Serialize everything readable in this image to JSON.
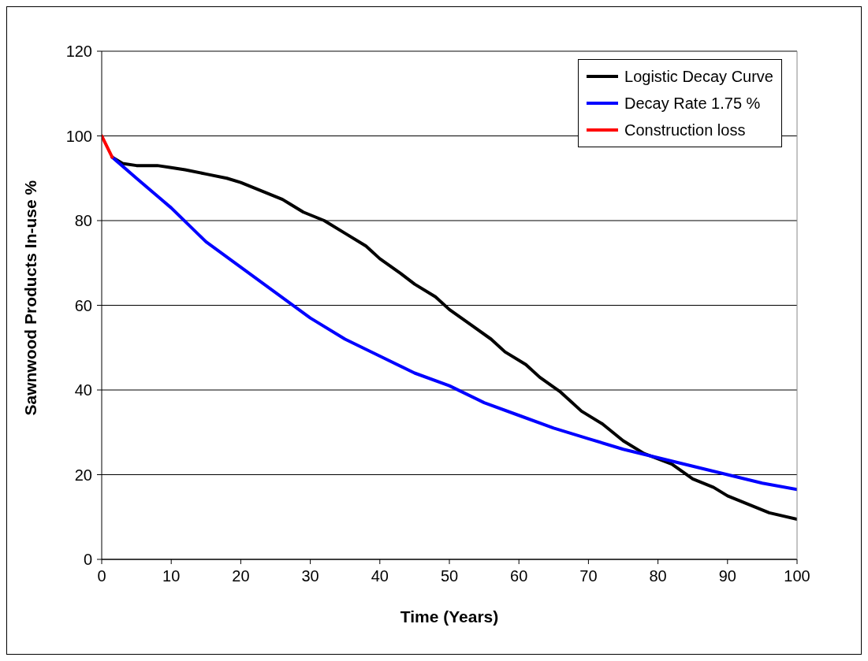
{
  "chart_data": {
    "type": "line",
    "xlabel": "Time (Years)",
    "ylabel": "Sawnwood Products In-use %",
    "xlim": [
      0,
      100
    ],
    "xticks": [
      0,
      10,
      20,
      30,
      40,
      50,
      60,
      70,
      80,
      90,
      100
    ],
    "ylim": [
      0,
      120
    ],
    "yticks": [
      0,
      20,
      40,
      60,
      80,
      100,
      120
    ],
    "grid": "y",
    "legend": "top right",
    "marker": "none",
    "line_style": "solid",
    "series": [
      {
        "name": "Logistic Decay Curve",
        "color": "#000000",
        "x": [
          1.5,
          3,
          5,
          8,
          10,
          12,
          15,
          18,
          20,
          23,
          26,
          27,
          29,
          32,
          35,
          38,
          40,
          43,
          45,
          48,
          50,
          53,
          56,
          58,
          61,
          63,
          66,
          69,
          72,
          75,
          78,
          82,
          85,
          88,
          90,
          93,
          96,
          100
        ],
        "values": [
          95,
          93.5,
          93,
          93,
          92.5,
          92,
          91,
          90,
          89,
          87,
          85,
          84,
          82,
          80,
          77,
          74,
          71,
          67.5,
          65,
          62,
          59,
          55.5,
          52,
          49,
          46,
          43,
          39.5,
          35,
          32,
          28,
          25,
          22.5,
          19,
          17,
          15,
          13,
          11,
          9.5
        ]
      },
      {
        "name": "Decay Rate 1.75 %",
        "color": "#0000ff",
        "x": [
          1.5,
          5,
          10,
          15,
          20,
          25,
          30,
          35,
          40,
          45,
          50,
          55,
          60,
          65,
          70,
          75,
          80,
          85,
          90,
          95,
          100
        ],
        "values": [
          95,
          90,
          83,
          75,
          69,
          63,
          57,
          52,
          48,
          44,
          41,
          37,
          34,
          31,
          28.5,
          26,
          24,
          22,
          20,
          18,
          16.5
        ]
      },
      {
        "name": "Construction loss",
        "color": "#ff0000",
        "x": [
          0,
          1.5
        ],
        "values": [
          100,
          95
        ]
      }
    ]
  }
}
